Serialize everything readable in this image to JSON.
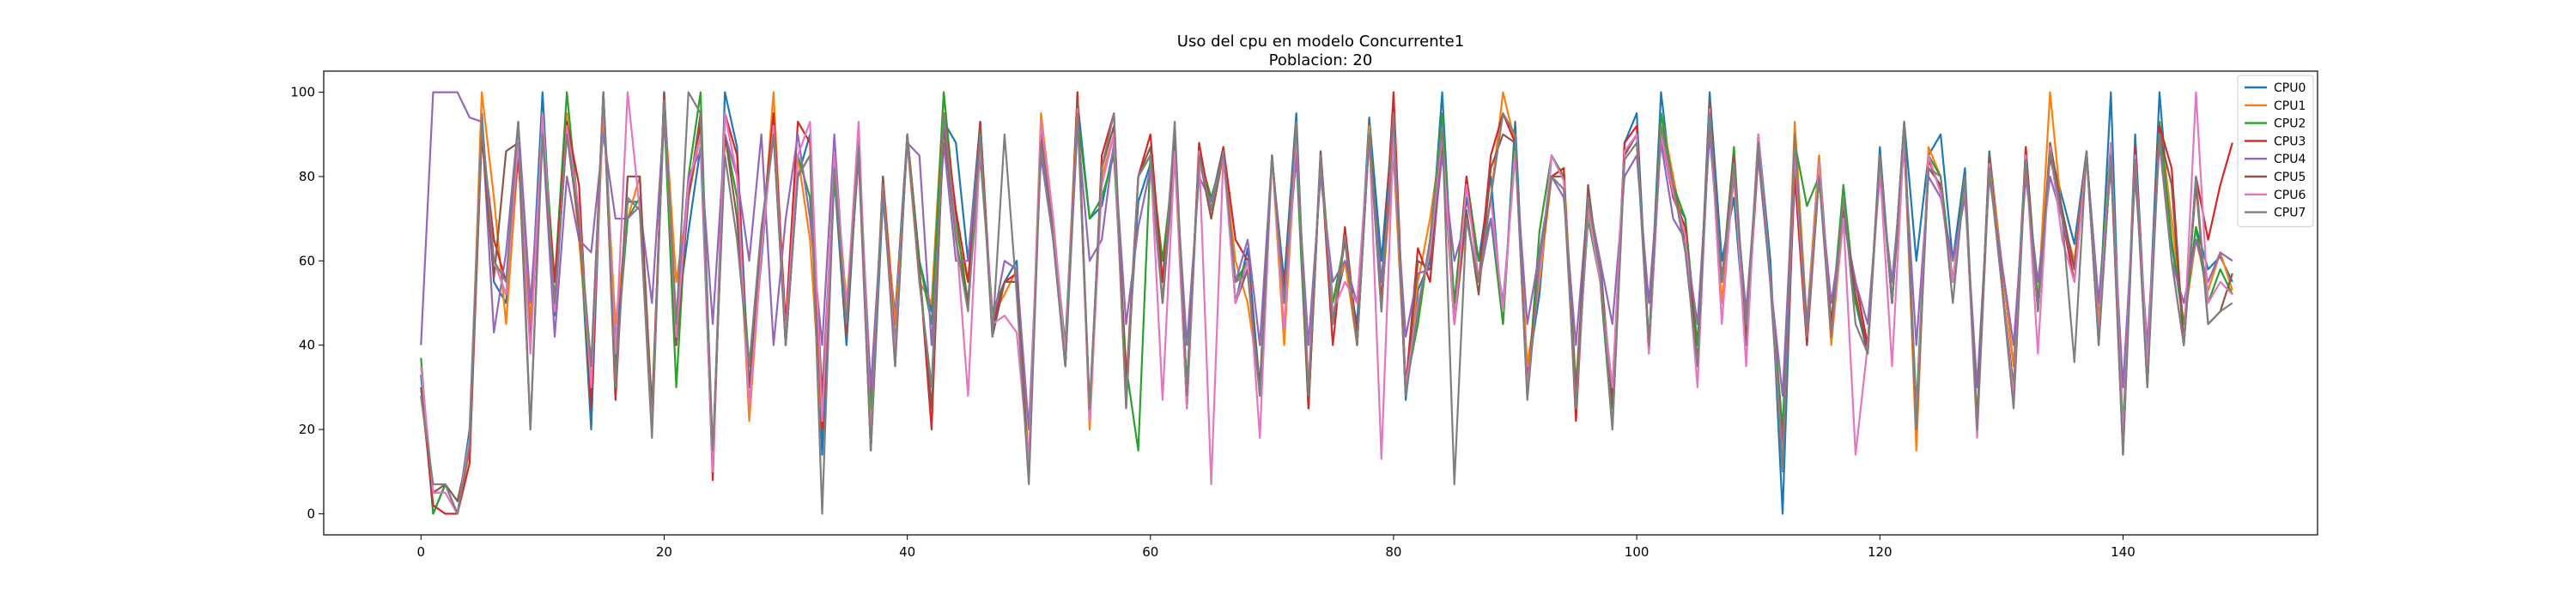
{
  "chart_data": {
    "type": "line",
    "title": "Uso del cpu en modelo Concurrente1",
    "subtitle": "Poblacion: 20",
    "xlabel": "",
    "ylabel": "",
    "xlim": [
      -8,
      156
    ],
    "ylim": [
      -5,
      105
    ],
    "xticks": [
      0,
      20,
      40,
      60,
      80,
      100,
      120,
      140
    ],
    "yticks": [
      0,
      20,
      40,
      60,
      80,
      100
    ],
    "grid": false,
    "legend": "top-right",
    "series": [
      {
        "name": "CPU0",
        "color": "#1f77b4",
        "values": [
          33,
          0,
          7,
          0,
          20,
          95,
          55,
          50,
          85,
          45,
          100,
          47,
          92,
          70,
          20,
          100,
          40,
          74,
          74,
          20,
          100,
          45,
          67,
          87,
          10,
          100,
          87,
          30,
          60,
          95,
          40,
          80,
          90,
          14,
          80,
          40,
          88,
          15,
          75,
          47,
          90,
          60,
          48,
          93,
          88,
          60,
          93,
          43,
          55,
          60,
          10,
          90,
          65,
          40,
          98,
          70,
          73,
          87,
          30,
          74,
          83,
          55,
          90,
          30,
          86,
          74,
          87,
          50,
          63,
          30,
          84,
          55,
          95,
          25,
          86,
          47,
          60,
          45,
          94,
          60,
          95,
          27,
          53,
          60,
          100,
          46,
          75,
          60,
          80,
          45,
          93,
          33,
          52,
          85,
          80,
          28,
          70,
          60,
          25,
          88,
          95,
          40,
          100,
          75,
          70,
          35,
          100,
          60,
          75,
          40,
          90,
          60,
          0,
          85,
          45,
          85,
          45,
          72,
          50,
          38,
          87,
          50,
          93,
          60,
          85,
          90,
          60,
          82,
          20,
          86,
          60,
          35,
          86,
          50,
          86,
          75,
          64,
          86,
          45,
          100,
          15,
          90,
          35,
          100,
          64,
          45,
          68,
          58,
          61,
          55
        ]
      },
      {
        "name": "CPU1",
        "color": "#ff7f0e",
        "values": [
          28,
          5,
          5,
          0,
          15,
          100,
          75,
          45,
          85,
          45,
          92,
          50,
          95,
          65,
          30,
          95,
          45,
          70,
          80,
          25,
          98,
          55,
          75,
          90,
          12,
          95,
          80,
          22,
          62,
          100,
          42,
          85,
          65,
          20,
          85,
          50,
          85,
          20,
          80,
          45,
          88,
          55,
          50,
          100,
          67,
          55,
          85,
          47,
          52,
          58,
          12,
          95,
          70,
          38,
          100,
          20,
          80,
          90,
          25,
          80,
          85,
          50,
          85,
          25,
          85,
          70,
          85,
          60,
          50,
          30,
          85,
          40,
          90,
          30,
          85,
          50,
          60,
          40,
          92,
          50,
          85,
          30,
          55,
          70,
          90,
          45,
          70,
          55,
          75,
          100,
          88,
          35,
          55,
          80,
          82,
          30,
          75,
          55,
          30,
          85,
          90,
          40,
          95,
          80,
          65,
          35,
          95,
          50,
          80,
          40,
          90,
          55,
          18,
          93,
          45,
          85,
          40,
          70,
          55,
          40,
          85,
          50,
          90,
          15,
          87,
          80,
          55,
          80,
          22,
          85,
          60,
          35,
          82,
          50,
          100,
          70,
          60,
          86,
          45,
          87,
          17,
          87,
          30,
          93,
          70,
          45,
          65,
          53,
          62,
          53
        ]
      },
      {
        "name": "CPU2",
        "color": "#2ca02c",
        "values": [
          37,
          0,
          7,
          0,
          18,
          92,
          60,
          52,
          88,
          40,
          95,
          55,
          100,
          70,
          25,
          100,
          35,
          70,
          75,
          25,
          95,
          30,
          80,
          100,
          12,
          90,
          75,
          35,
          65,
          95,
          40,
          85,
          75,
          25,
          80,
          45,
          90,
          25,
          78,
          40,
          90,
          60,
          45,
          100,
          70,
          50,
          85,
          48,
          55,
          55,
          10,
          90,
          68,
          40,
          95,
          70,
          75,
          85,
          35,
          15,
          85,
          60,
          85,
          30,
          85,
          75,
          85,
          55,
          60,
          28,
          85,
          50,
          85,
          25,
          85,
          50,
          65,
          40,
          90,
          55,
          90,
          30,
          45,
          65,
          95,
          50,
          80,
          60,
          70,
          45,
          90,
          28,
          67,
          85,
          80,
          30,
          70,
          55,
          20,
          85,
          90,
          40,
          95,
          78,
          70,
          40,
          95,
          55,
          87,
          40,
          88,
          55,
          20,
          88,
          73,
          80,
          45,
          78,
          50,
          40,
          85,
          50,
          90,
          25,
          85,
          80,
          55,
          80,
          20,
          85,
          55,
          30,
          87,
          50,
          85,
          72,
          58,
          85,
          50,
          88,
          20,
          85,
          30,
          93,
          65,
          45,
          68,
          50,
          58,
          52
        ]
      },
      {
        "name": "CPU3",
        "color": "#d62728",
        "values": [
          30,
          2,
          0,
          0,
          12,
          90,
          65,
          55,
          85,
          40,
          90,
          55,
          93,
          78,
          25,
          100,
          27,
          80,
          80,
          22,
          100,
          40,
          75,
          92,
          8,
          95,
          85,
          25,
          65,
          95,
          45,
          93,
          88,
          20,
          85,
          45,
          85,
          15,
          80,
          40,
          90,
          58,
          20,
          95,
          72,
          55,
          93,
          45,
          55,
          57,
          8,
          92,
          66,
          35,
          100,
          22,
          85,
          95,
          30,
          80,
          90,
          55,
          88,
          25,
          88,
          72,
          87,
          65,
          60,
          28,
          85,
          52,
          93,
          25,
          85,
          40,
          68,
          42,
          90,
          50,
          100,
          30,
          63,
          55,
          87,
          45,
          80,
          55,
          85,
          95,
          88,
          30,
          60,
          80,
          82,
          22,
          75,
          58,
          28,
          88,
          92,
          38,
          90,
          75,
          68,
          35,
          93,
          55,
          85,
          40,
          85,
          55,
          13,
          80,
          40,
          80,
          45,
          70,
          55,
          40,
          85,
          50,
          93,
          20,
          84,
          77,
          55,
          78,
          20,
          84,
          56,
          27,
          87,
          48,
          85,
          70,
          55,
          85,
          42,
          84,
          14,
          87,
          35,
          92,
          82,
          40,
          80,
          65,
          78,
          88
        ]
      },
      {
        "name": "CPU4",
        "color": "#9467bd",
        "values": [
          40,
          100,
          100,
          100,
          94,
          93,
          43,
          62,
          93,
          50,
          90,
          42,
          80,
          65,
          62,
          90,
          70,
          70,
          73,
          50,
          95,
          45,
          80,
          86,
          45,
          90,
          80,
          60,
          90,
          40,
          70,
          90,
          70,
          40,
          90,
          45,
          85,
          30,
          75,
          40,
          88,
          85,
          40,
          88,
          60,
          60,
          90,
          45,
          60,
          58,
          20,
          85,
          65,
          35,
          92,
          60,
          65,
          88,
          45,
          68,
          82,
          50,
          85,
          40,
          80,
          74,
          85,
          55,
          65,
          40,
          85,
          50,
          85,
          40,
          80,
          55,
          60,
          50,
          88,
          55,
          85,
          42,
          57,
          58,
          85,
          60,
          70,
          55,
          70,
          50,
          85,
          45,
          62,
          80,
          75,
          40,
          75,
          60,
          45,
          80,
          85,
          50,
          88,
          70,
          65,
          45,
          90,
          55,
          80,
          48,
          85,
          55,
          28,
          87,
          45,
          80,
          50,
          70,
          55,
          45,
          80,
          55,
          87,
          40,
          80,
          75,
          60,
          75,
          30,
          80,
          60,
          40,
          80,
          55,
          80,
          70,
          58,
          85,
          50,
          82,
          30,
          80,
          40,
          88,
          60,
          50,
          65,
          55,
          62,
          60
        ]
      },
      {
        "name": "CPU5",
        "color": "#8c564b",
        "values": [
          30,
          5,
          7,
          3,
          16,
          90,
          56,
          86,
          88,
          20,
          92,
          50,
          90,
          68,
          35,
          100,
          30,
          80,
          80,
          22,
          100,
          40,
          75,
          95,
          12,
          90,
          70,
          30,
          65,
          90,
          40,
          80,
          85,
          28,
          82,
          42,
          87,
          18,
          80,
          35,
          90,
          58,
          25,
          92,
          65,
          50,
          92,
          42,
          55,
          55,
          10,
          90,
          67,
          35,
          98,
          25,
          82,
          92,
          28,
          80,
          87,
          50,
          90,
          28,
          85,
          70,
          86,
          50,
          58,
          30,
          85,
          50,
          90,
          28,
          86,
          45,
          65,
          40,
          90,
          48,
          95,
          28,
          60,
          58,
          90,
          45,
          72,
          52,
          82,
          90,
          88,
          28,
          58,
          80,
          80,
          28,
          78,
          55,
          25,
          85,
          90,
          40,
          92,
          78,
          65,
          35,
          98,
          55,
          85,
          40,
          88,
          55,
          15,
          85,
          42,
          82,
          42,
          72,
          52,
          38,
          84,
          50,
          88,
          22,
          82,
          78,
          55,
          78,
          22,
          85,
          55,
          30,
          85,
          48,
          88,
          72,
          58,
          86,
          40,
          85,
          16,
          84,
          32,
          90,
          78,
          40,
          78,
          45,
          48,
          57
        ]
      },
      {
        "name": "CPU6",
        "color": "#e377c2",
        "values": [
          35,
          5,
          5,
          0,
          18,
          93,
          60,
          52,
          88,
          38,
          95,
          48,
          92,
          72,
          30,
          98,
          38,
          100,
          72,
          20,
          98,
          42,
          78,
          90,
          10,
          95,
          80,
          25,
          62,
          92,
          42,
          85,
          93,
          22,
          85,
          48,
          93,
          18,
          78,
          38,
          90,
          55,
          30,
          95,
          67,
          28,
          88,
          45,
          47,
          43,
          12,
          93,
          70,
          38,
          96,
          22,
          78,
          90,
          26,
          80,
          85,
          27,
          86,
          25,
          86,
          7,
          85,
          50,
          60,
          18,
          85,
          44,
          90,
          30,
          84,
          48,
          55,
          50,
          90,
          13,
          90,
          30,
          50,
          62,
          90,
          45,
          78,
          55,
          75,
          48,
          86,
          30,
          57,
          85,
          79,
          25,
          72,
          55,
          30,
          86,
          90,
          38,
          90,
          76,
          66,
          30,
          96,
          45,
          83,
          35,
          90,
          55,
          12,
          86,
          42,
          83,
          42,
          70,
          14,
          40,
          82,
          35,
          90,
          22,
          85,
          76,
          55,
          78,
          18,
          83,
          55,
          28,
          85,
          38,
          87,
          65,
          55,
          85,
          42,
          88,
          18,
          85,
          35,
          90,
          60,
          40,
          100,
          50,
          55,
          52
        ]
      },
      {
        "name": "CPU7",
        "color": "#7f7f7f",
        "values": [
          28,
          7,
          7,
          0,
          16,
          93,
          60,
          55,
          93,
          20,
          90,
          50,
          90,
          70,
          35,
          100,
          30,
          75,
          72,
          18,
          98,
          45,
          100,
          95,
          15,
          85,
          65,
          35,
          68,
          90,
          40,
          80,
          85,
          0,
          82,
          45,
          87,
          15,
          78,
          35,
          90,
          55,
          30,
          95,
          65,
          48,
          90,
          42,
          90,
          52,
          7,
          88,
          65,
          35,
          95,
          25,
          82,
          95,
          25,
          80,
          85,
          50,
          93,
          28,
          85,
          72,
          86,
          55,
          57,
          28,
          85,
          50,
          93,
          28,
          85,
          45,
          66,
          40,
          90,
          48,
          95,
          28,
          48,
          65,
          92,
          7,
          70,
          55,
          75,
          95,
          90,
          27,
          60,
          80,
          77,
          25,
          75,
          58,
          20,
          84,
          88,
          40,
          92,
          78,
          62,
          35,
          95,
          55,
          83,
          45,
          88,
          54,
          10,
          90,
          42,
          80,
          42,
          75,
          45,
          38,
          85,
          50,
          93,
          20,
          82,
          80,
          50,
          80,
          20,
          82,
          55,
          25,
          84,
          48,
          86,
          70,
          36,
          86,
          40,
          85,
          14,
          84,
          30,
          90,
          60,
          40,
          80,
          45,
          48,
          50
        ]
      }
    ]
  }
}
